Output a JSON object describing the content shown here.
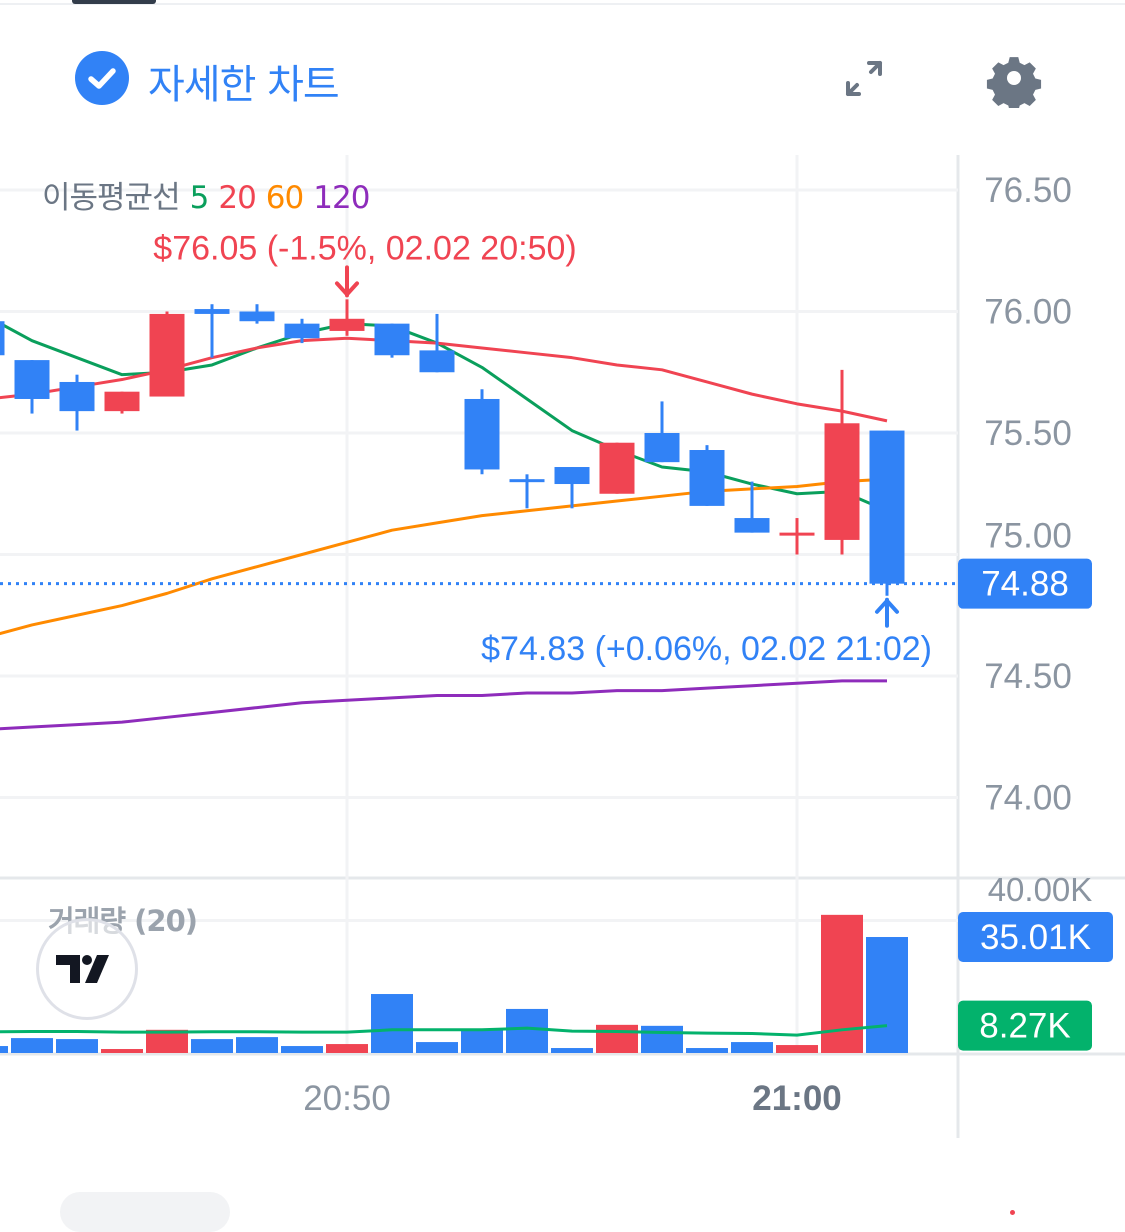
{
  "header": {
    "title": "자세한 차트",
    "icons": [
      "check-circle-icon",
      "expand-icon",
      "gear-icon"
    ]
  },
  "legend": {
    "ma_label": "이동평균선",
    "ma_periods": [
      {
        "label": "5",
        "color": "#0a9f5c"
      },
      {
        "label": "20",
        "color": "#f04452"
      },
      {
        "label": "60",
        "color": "#ff8a00"
      },
      {
        "label": "120",
        "color": "#8e2cbb"
      }
    ],
    "volume_label": "거래량 (20)"
  },
  "annotations": {
    "high": "$76.05 (-1.5%, 02.02 20:50)",
    "low": "$74.83 (+0.06%, 02.02 21:02)"
  },
  "tags": {
    "last_price": "74.88",
    "last_volume": "35.01K",
    "volume_ma": "8.27K"
  },
  "colors": {
    "up": "#f04452",
    "down": "#3182f6",
    "volume_ma": "#03b26c",
    "grid": "#f2f3f5",
    "axis_text": "#8b95a1"
  },
  "chart_data": {
    "type": "candlestick",
    "price_axis": {
      "ticks": [
        "76.50",
        "76.00",
        "75.50",
        "75.00",
        "74.50",
        "74.00"
      ],
      "range": [
        73.7,
        76.65
      ]
    },
    "volume_axis": {
      "ticks": [
        "40.00K"
      ],
      "unit": "K"
    },
    "time_axis": {
      "ticks": [
        {
          "label": "20:50",
          "bold": false
        },
        {
          "label": "21:00",
          "bold": true
        }
      ]
    },
    "grid": true,
    "candles": [
      {
        "t": "20:42",
        "o": 75.96,
        "h": 75.96,
        "l": 75.82,
        "c": 75.82,
        "v": 2.1
      },
      {
        "t": "20:43",
        "o": 75.8,
        "h": 75.8,
        "l": 75.58,
        "c": 75.64,
        "v": 4.5
      },
      {
        "t": "20:44",
        "o": 75.71,
        "h": 75.74,
        "l": 75.51,
        "c": 75.59,
        "v": 4.2
      },
      {
        "t": "20:45",
        "o": 75.59,
        "h": 75.67,
        "l": 75.58,
        "c": 75.67,
        "v": 1.2
      },
      {
        "t": "20:46",
        "o": 75.65,
        "h": 76.0,
        "l": 75.65,
        "c": 75.99,
        "v": 7.0
      },
      {
        "t": "20:47",
        "o": 76.01,
        "h": 76.03,
        "l": 75.81,
        "c": 75.99,
        "v": 4.2
      },
      {
        "t": "20:48",
        "o": 76.0,
        "h": 76.03,
        "l": 75.95,
        "c": 75.96,
        "v": 4.8
      },
      {
        "t": "20:49",
        "o": 75.95,
        "h": 75.97,
        "l": 75.87,
        "c": 75.89,
        "v": 2.1
      },
      {
        "t": "20:50",
        "o": 75.92,
        "h": 76.05,
        "l": 75.9,
        "c": 75.97,
        "v": 2.7
      },
      {
        "t": "20:51",
        "o": 75.95,
        "h": 75.95,
        "l": 75.81,
        "c": 75.82,
        "v": 17.8
      },
      {
        "t": "20:52",
        "o": 75.84,
        "h": 75.99,
        "l": 75.75,
        "c": 75.75,
        "v": 3.3
      },
      {
        "t": "20:53",
        "o": 75.64,
        "h": 75.68,
        "l": 75.33,
        "c": 75.35,
        "v": 7.0
      },
      {
        "t": "20:54",
        "o": 75.31,
        "h": 75.33,
        "l": 75.19,
        "c": 75.3,
        "v": 13.3
      },
      {
        "t": "20:55",
        "o": 75.36,
        "h": 75.36,
        "l": 75.19,
        "c": 75.29,
        "v": 1.5
      },
      {
        "t": "20:56",
        "o": 75.25,
        "h": 75.46,
        "l": 75.25,
        "c": 75.46,
        "v": 8.5
      },
      {
        "t": "20:57",
        "o": 75.5,
        "h": 75.63,
        "l": 75.38,
        "c": 75.38,
        "v": 8.2
      },
      {
        "t": "20:58",
        "o": 75.43,
        "h": 75.45,
        "l": 75.2,
        "c": 75.2,
        "v": 1.5
      },
      {
        "t": "20:59",
        "o": 75.15,
        "h": 75.3,
        "l": 75.09,
        "c": 75.09,
        "v": 3.3
      },
      {
        "t": "21:00",
        "o": 75.08,
        "h": 75.15,
        "l": 75.0,
        "c": 75.09,
        "v": 2.4
      },
      {
        "t": "21:01",
        "o": 75.06,
        "h": 75.76,
        "l": 75.0,
        "c": 75.54,
        "v": 41.7
      },
      {
        "t": "21:02",
        "o": 75.51,
        "h": 75.51,
        "l": 74.83,
        "c": 74.88,
        "v": 35.01
      }
    ],
    "moving_averages": [
      {
        "name": "5",
        "color": "#0a9f5c",
        "values": [
          75.98,
          75.88,
          75.81,
          75.74,
          75.75,
          75.78,
          75.85,
          75.91,
          75.95,
          75.94,
          75.87,
          75.77,
          75.64,
          75.51,
          75.43,
          75.36,
          75.34,
          75.29,
          75.25,
          75.26,
          75.18
        ]
      },
      {
        "name": "20",
        "color": "#f04452",
        "values": [
          75.64,
          75.66,
          75.69,
          75.72,
          75.76,
          75.81,
          75.85,
          75.88,
          75.89,
          75.88,
          75.87,
          75.85,
          75.83,
          75.81,
          75.78,
          75.76,
          75.71,
          75.66,
          75.62,
          75.59,
          75.55
        ]
      },
      {
        "name": "60",
        "color": "#ff8a00",
        "values": [
          74.66,
          74.71,
          74.75,
          74.79,
          74.84,
          74.9,
          74.95,
          75.0,
          75.05,
          75.1,
          75.13,
          75.16,
          75.18,
          75.2,
          75.22,
          75.24,
          75.26,
          75.27,
          75.28,
          75.3,
          75.31
        ]
      },
      {
        "name": "120",
        "color": "#8e2cbb",
        "values": [
          74.28,
          74.29,
          74.3,
          74.31,
          74.33,
          74.35,
          74.37,
          74.39,
          74.4,
          74.41,
          74.42,
          74.42,
          74.43,
          74.43,
          74.44,
          74.44,
          74.45,
          74.46,
          74.47,
          74.48,
          74.48
        ]
      }
    ],
    "volume_ma": {
      "name": "20",
      "values": [
        6.4,
        6.5,
        6.5,
        6.3,
        6.3,
        6.4,
        6.4,
        6.3,
        6.3,
        7.0,
        7.0,
        7.0,
        7.5,
        6.6,
        6.5,
        6.2,
        6.0,
        5.9,
        5.4,
        7.0,
        8.27
      ]
    }
  }
}
